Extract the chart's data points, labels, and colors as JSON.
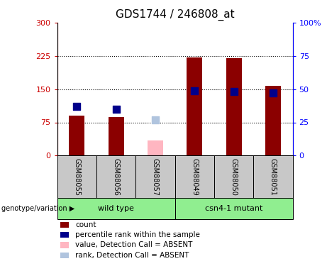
{
  "title": "GDS1744 / 246808_at",
  "samples": [
    "GSM88055",
    "GSM88056",
    "GSM88057",
    "GSM88049",
    "GSM88050",
    "GSM88051"
  ],
  "count_values": [
    90,
    87,
    35,
    222,
    220,
    157
  ],
  "rank_values": [
    37,
    35,
    27,
    49,
    48,
    47
  ],
  "absent_mask": [
    false,
    false,
    true,
    false,
    false,
    false
  ],
  "bar_color_present": "#8B0000",
  "bar_color_absent": "#FFB6C1",
  "rank_color_present": "#00008B",
  "rank_color_absent": "#B0C4DE",
  "left_ylim": [
    0,
    300
  ],
  "right_ylim": [
    0,
    100
  ],
  "left_yticks": [
    0,
    75,
    150,
    225,
    300
  ],
  "right_yticks": [
    0,
    25,
    50,
    75,
    100
  ],
  "left_yticklabels": [
    "0",
    "75",
    "150",
    "225",
    "300"
  ],
  "right_yticklabels": [
    "0",
    "25",
    "50",
    "75",
    "100%"
  ],
  "hlines": [
    75,
    150,
    225
  ],
  "bar_width": 0.4,
  "rank_marker_size": 55,
  "group_label": "genotype/variation",
  "group1_label": "wild type",
  "group2_label": "csn4-1 mutant",
  "group_bg_color": "#90EE90",
  "sample_bg_color": "#C8C8C8",
  "title_fontsize": 11,
  "legend_entries": [
    [
      "#8B0000",
      "count"
    ],
    [
      "#00008B",
      "percentile rank within the sample"
    ],
    [
      "#FFB6C1",
      "value, Detection Call = ABSENT"
    ],
    [
      "#B0C4DE",
      "rank, Detection Call = ABSENT"
    ]
  ]
}
